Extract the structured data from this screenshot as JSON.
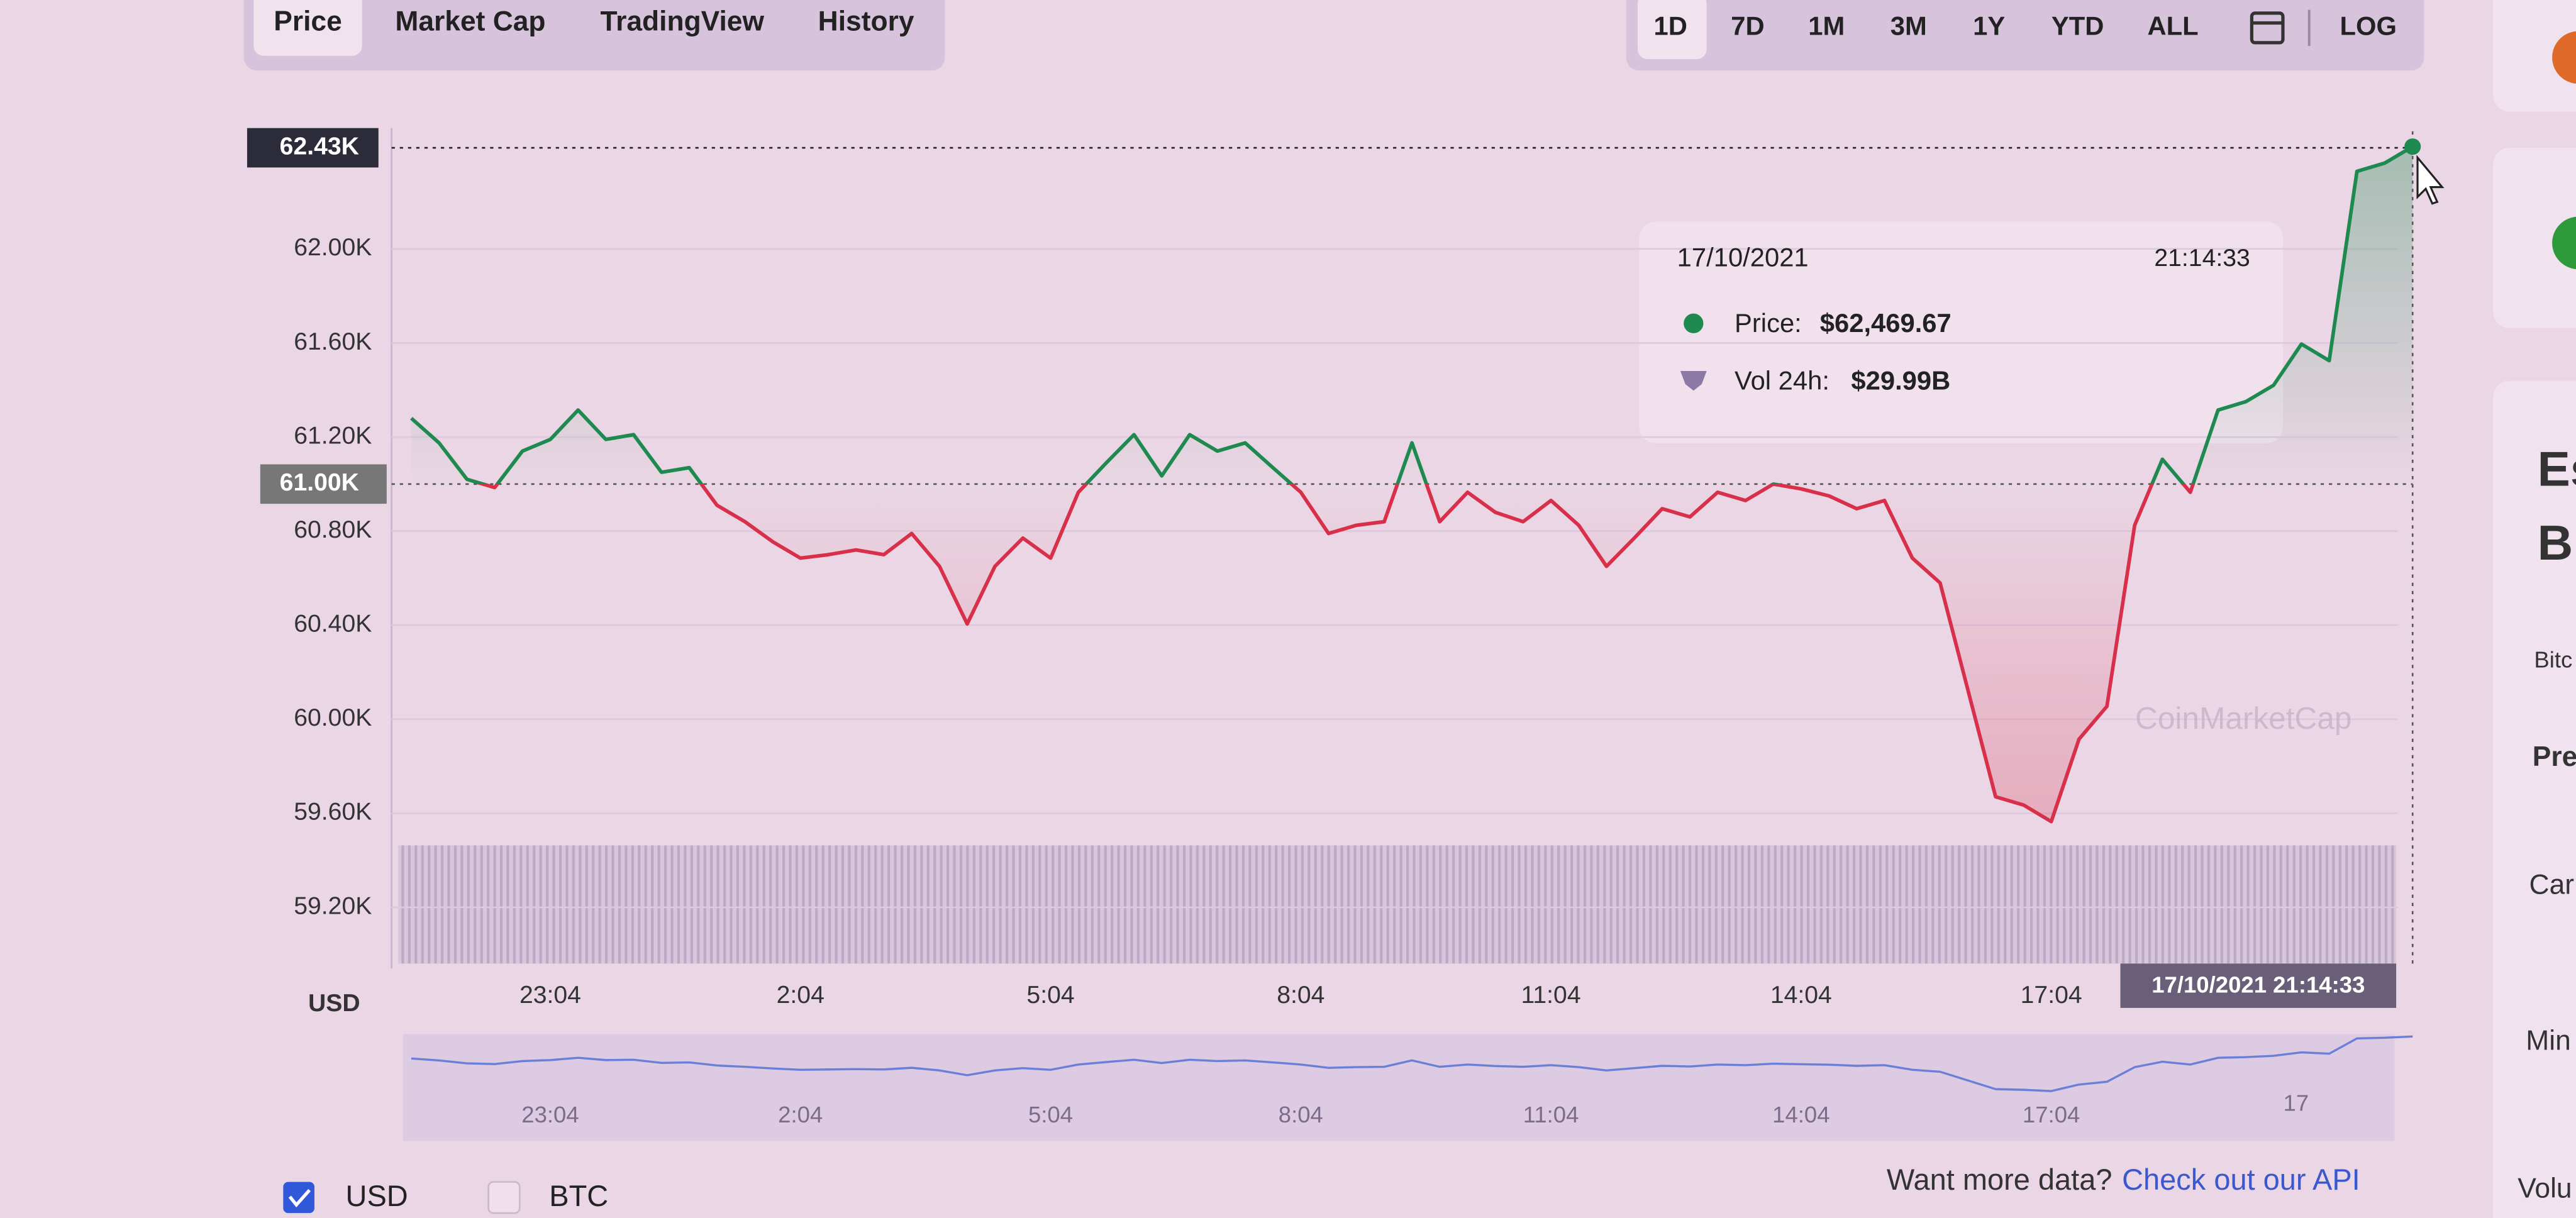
{
  "tabs": [
    "Price",
    "Market Cap",
    "TradingView",
    "History"
  ],
  "ranges": [
    "1D",
    "7D",
    "1M",
    "3M",
    "1Y",
    "YTD",
    "ALL",
    "LOG"
  ],
  "chart_data": {
    "type": "line",
    "categories": [
      null,
      null,
      null,
      null,
      null,
      "23:04",
      null,
      null,
      null,
      null,
      null,
      null,
      null,
      null,
      "2:04",
      null,
      null,
      null,
      null,
      null,
      null,
      null,
      null,
      "5:04",
      null,
      null,
      null,
      null,
      null,
      null,
      null,
      null,
      "8:04",
      null,
      null,
      null,
      null,
      null,
      null,
      null,
      null,
      "11:04",
      null,
      null,
      null,
      null,
      null,
      null,
      null,
      null,
      "14:04",
      null,
      null,
      null,
      null,
      null,
      null,
      null,
      null,
      "17:04",
      null,
      null,
      null,
      null,
      null,
      null,
      null,
      null,
      null,
      null,
      null,
      null,
      null
    ],
    "series": [
      {
        "color": "#1e8a4f",
        "color_below": "#d8304a",
        "values": [
          61280,
          61175,
          61020,
          60985,
          61140,
          61190,
          61315,
          61190,
          61210,
          61050,
          61070,
          60910,
          60840,
          60755,
          60685,
          60700,
          60720,
          60700,
          60790,
          60650,
          60405,
          60650,
          60770,
          60685,
          60965,
          61090,
          61210,
          61035,
          61210,
          61140,
          61175,
          61070,
          60965,
          60790,
          60825,
          60840,
          61175,
          60840,
          60965,
          60880,
          60840,
          60930,
          60825,
          60650,
          60770,
          60895,
          60860,
          60965,
          60930,
          61000,
          60980,
          60950,
          60895,
          60930,
          60685,
          60580,
          60125,
          59670,
          59635,
          59565,
          59915,
          60055,
          60825,
          61105,
          60965,
          61315,
          61350,
          61420,
          61595,
          61525,
          62330,
          62365,
          62435
        ]
      }
    ],
    "ylim": [
      58940,
      62500
    ],
    "yticks": [
      {
        "value": 59200,
        "label": "59.20K"
      },
      {
        "value": 59600,
        "label": "59.60K"
      },
      {
        "value": 60000,
        "label": "60.00K"
      },
      {
        "value": 60400,
        "label": "60.40K"
      },
      {
        "value": 60800,
        "label": "60.80K"
      },
      {
        "value": 61200,
        "label": "61.20K"
      },
      {
        "value": 61600,
        "label": "61.60K"
      },
      {
        "value": 62000,
        "label": "62.00K"
      }
    ],
    "reference_line": {
      "value": 61000,
      "label": "61.00K"
    },
    "crosshair": {
      "value": 62430,
      "label": "62.43K"
    },
    "y_axis_label": "USD",
    "crosshair_time": "17/10/2021 21:14:33",
    "watermark": "CoinMarketCap",
    "navigator_extra_label": "17",
    "grid": true
  },
  "tooltip": {
    "date": "17/10/2021",
    "time": "21:14:33",
    "price_label": "Price:",
    "price": "$62,469.67",
    "volume_label": "Vol 24h:",
    "volume": "$29.99B"
  },
  "footer": {
    "currencies": [
      "USD",
      "BTC"
    ],
    "prompt": "Want more data?",
    "link": "Check out our API"
  },
  "side_panel": [
    "Es",
    "B",
    "Bitc",
    "Pre",
    "Car",
    "Min",
    "Volu"
  ]
}
